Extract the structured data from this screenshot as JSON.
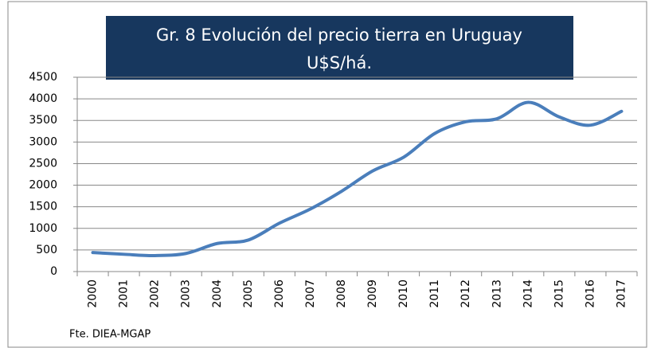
{
  "chart_data": {
    "type": "line",
    "title": "Gr. 8 Evolución del precio tierra en Uruguay",
    "subtitle": "U$S/há.",
    "source": "Fte.  DIEA-MGAP",
    "categories": [
      "2000",
      "2001",
      "2002",
      "2003",
      "2004",
      "2005",
      "2006",
      "2007",
      "2008",
      "2009",
      "2010",
      "2011",
      "2012",
      "2013",
      "2014",
      "2015",
      "2016",
      "2017"
    ],
    "values": [
      440,
      400,
      370,
      420,
      650,
      730,
      1120,
      1450,
      1860,
      2330,
      2650,
      3200,
      3470,
      3540,
      3920,
      3580,
      3390,
      3710
    ],
    "color": "#4a7ebb",
    "ylim": [
      0,
      4500
    ],
    "yticks": [
      0,
      500,
      1000,
      1500,
      2000,
      2500,
      3000,
      3500,
      4000,
      4500
    ],
    "grid": true
  }
}
